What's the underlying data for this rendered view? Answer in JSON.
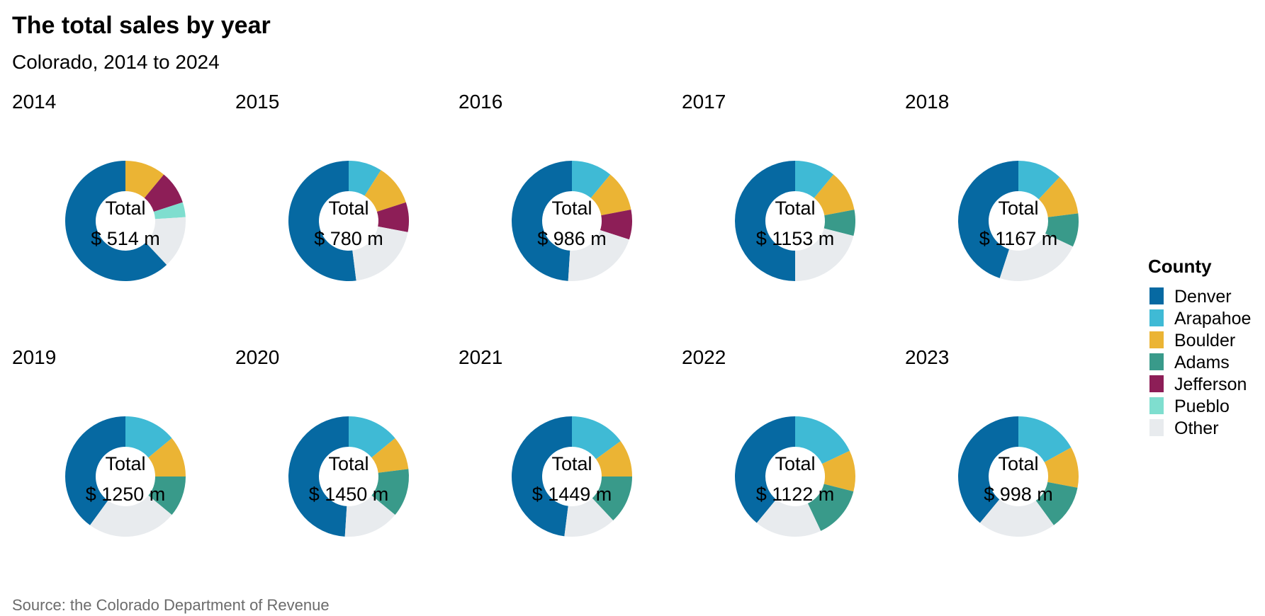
{
  "chart_data": {
    "type": "pie",
    "title": "The total sales by year",
    "subtitle": "Colorado, 2014 to 2024",
    "source": "Source: the Colorado Department of Revenue",
    "center_label": "Total",
    "legend": {
      "title": "County",
      "position": "right",
      "entries": [
        "Denver",
        "Arapahoe",
        "Boulder",
        "Adams",
        "Jefferson",
        "Pueblo",
        "Other"
      ]
    },
    "colors": {
      "Denver": "#0669a2",
      "Arapahoe": "#3fbad5",
      "Boulder": "#ebb434",
      "Adams": "#399a8a",
      "Jefferson": "#8d1e57",
      "Pueblo": "#7fdecf",
      "Other": "#e8ebee"
    },
    "panels": [
      {
        "year": "2014",
        "total_label": "$ 514 m",
        "shares": {
          "Denver": 0.62,
          "Arapahoe": 0.0,
          "Boulder": 0.11,
          "Adams": 0.0,
          "Jefferson": 0.09,
          "Pueblo": 0.04,
          "Other": 0.14
        }
      },
      {
        "year": "2015",
        "total_label": "$ 780 m",
        "shares": {
          "Denver": 0.52,
          "Arapahoe": 0.09,
          "Boulder": 0.11,
          "Adams": 0.0,
          "Jefferson": 0.08,
          "Pueblo": 0.0,
          "Other": 0.2
        }
      },
      {
        "year": "2016",
        "total_label": "$ 986 m",
        "shares": {
          "Denver": 0.49,
          "Arapahoe": 0.11,
          "Boulder": 0.11,
          "Adams": 0.0,
          "Jefferson": 0.08,
          "Pueblo": 0.0,
          "Other": 0.21
        }
      },
      {
        "year": "2017",
        "total_label": "$ 1153 m",
        "shares": {
          "Denver": 0.5,
          "Arapahoe": 0.11,
          "Boulder": 0.11,
          "Adams": 0.07,
          "Jefferson": 0.0,
          "Pueblo": 0.0,
          "Other": 0.21
        }
      },
      {
        "year": "2018",
        "total_label": "$ 1167 m",
        "shares": {
          "Denver": 0.45,
          "Arapahoe": 0.12,
          "Boulder": 0.11,
          "Adams": 0.09,
          "Jefferson": 0.0,
          "Pueblo": 0.0,
          "Other": 0.23
        }
      },
      {
        "year": "2019",
        "total_label": "$ 1250 m",
        "shares": {
          "Denver": 0.4,
          "Arapahoe": 0.14,
          "Boulder": 0.11,
          "Adams": 0.11,
          "Jefferson": 0.0,
          "Pueblo": 0.0,
          "Other": 0.24
        }
      },
      {
        "year": "2020",
        "total_label": "$ 1450 m",
        "shares": {
          "Denver": 0.49,
          "Arapahoe": 0.14,
          "Boulder": 0.09,
          "Adams": 0.13,
          "Jefferson": 0.0,
          "Pueblo": 0.0,
          "Other": 0.15
        }
      },
      {
        "year": "2021",
        "total_label": "$ 1449 m",
        "shares": {
          "Denver": 0.48,
          "Arapahoe": 0.15,
          "Boulder": 0.1,
          "Adams": 0.13,
          "Jefferson": 0.0,
          "Pueblo": 0.0,
          "Other": 0.14
        }
      },
      {
        "year": "2022",
        "total_label": "$ 1122 m",
        "shares": {
          "Denver": 0.39,
          "Arapahoe": 0.18,
          "Boulder": 0.11,
          "Adams": 0.14,
          "Jefferson": 0.0,
          "Pueblo": 0.0,
          "Other": 0.18
        }
      },
      {
        "year": "2023",
        "total_label": "$ 998 m",
        "shares": {
          "Denver": 0.39,
          "Arapahoe": 0.17,
          "Boulder": 0.11,
          "Adams": 0.12,
          "Jefferson": 0.0,
          "Pueblo": 0.0,
          "Other": 0.21
        }
      }
    ]
  }
}
